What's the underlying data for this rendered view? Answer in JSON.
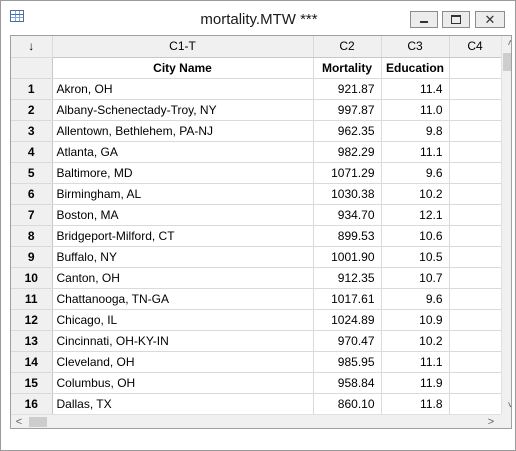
{
  "window": {
    "title": "mortality.MTW ***"
  },
  "worksheet": {
    "corner_label": "↓",
    "column_ids": [
      "C1-T",
      "C2",
      "C3",
      "C4"
    ],
    "column_names": [
      "City Name",
      "Mortality",
      "Education",
      ""
    ],
    "rows": [
      {
        "num": "1",
        "city": "Akron, OH",
        "mortality": "921.87",
        "education": "11.4"
      },
      {
        "num": "2",
        "city": "Albany-Schenectady-Troy, NY",
        "mortality": "997.87",
        "education": "11.0"
      },
      {
        "num": "3",
        "city": "Allentown, Bethlehem, PA-NJ",
        "mortality": "962.35",
        "education": "9.8"
      },
      {
        "num": "4",
        "city": "Atlanta, GA",
        "mortality": "982.29",
        "education": "11.1"
      },
      {
        "num": "5",
        "city": "Baltimore, MD",
        "mortality": "1071.29",
        "education": "9.6"
      },
      {
        "num": "6",
        "city": "Birmingham, AL",
        "mortality": "1030.38",
        "education": "10.2"
      },
      {
        "num": "7",
        "city": "Boston, MA",
        "mortality": "934.70",
        "education": "12.1"
      },
      {
        "num": "8",
        "city": "Bridgeport-Milford, CT",
        "mortality": "899.53",
        "education": "10.6"
      },
      {
        "num": "9",
        "city": "Buffalo, NY",
        "mortality": "1001.90",
        "education": "10.5"
      },
      {
        "num": "10",
        "city": "Canton, OH",
        "mortality": "912.35",
        "education": "10.7"
      },
      {
        "num": "11",
        "city": "Chattanooga, TN-GA",
        "mortality": "1017.61",
        "education": "9.6"
      },
      {
        "num": "12",
        "city": "Chicago, IL",
        "mortality": "1024.89",
        "education": "10.9"
      },
      {
        "num": "13",
        "city": "Cincinnati, OH-KY-IN",
        "mortality": "970.47",
        "education": "10.2"
      },
      {
        "num": "14",
        "city": "Cleveland, OH",
        "mortality": "985.95",
        "education": "11.1"
      },
      {
        "num": "15",
        "city": "Columbus, OH",
        "mortality": "958.84",
        "education": "11.9"
      },
      {
        "num": "16",
        "city": "Dallas, TX",
        "mortality": "860.10",
        "education": "11.8"
      }
    ]
  },
  "scrollbars": {
    "up_arrow": "˄",
    "down_arrow": "˅",
    "left_arrow": "<",
    "right_arrow": ">"
  }
}
